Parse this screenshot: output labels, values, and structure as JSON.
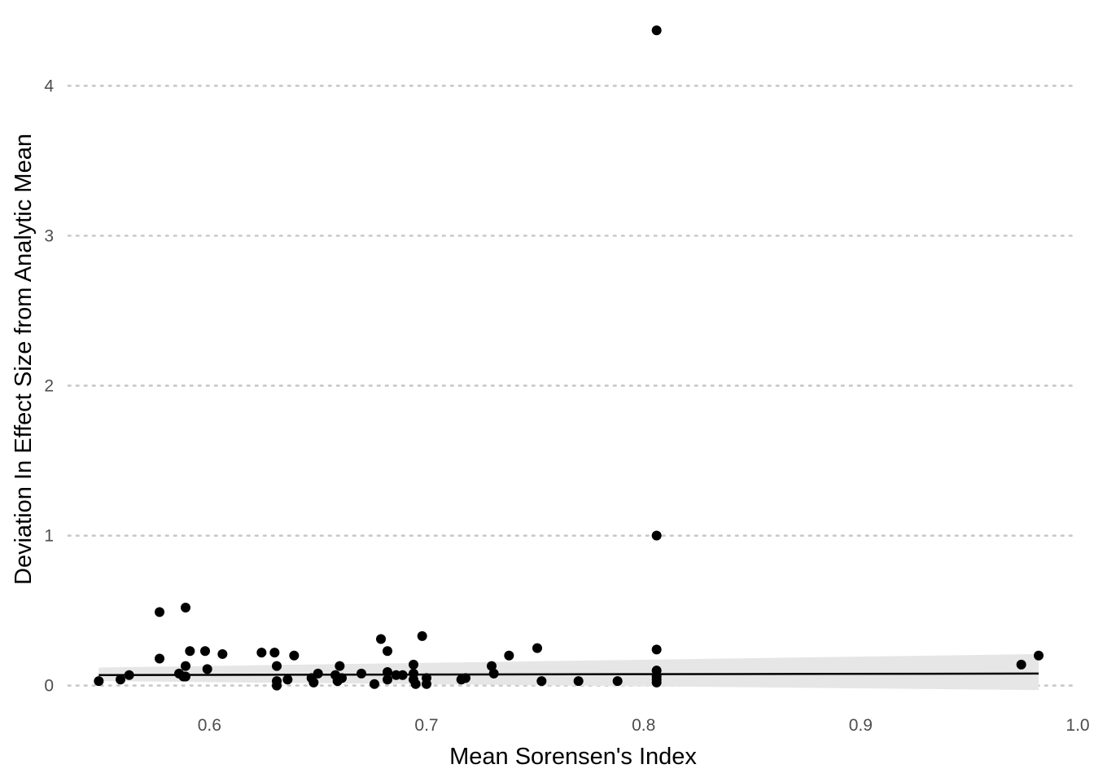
{
  "chart_data": {
    "type": "scatter",
    "title": "",
    "xlabel": "Mean Sorensen's Index",
    "ylabel": "Deviation In Effect Size from Analytic Mean",
    "xlim": [
      0.535,
      1.0
    ],
    "ylim": [
      -0.1,
      4.42
    ],
    "x_ticks": [
      0.6,
      0.7,
      0.8,
      0.9,
      1.0
    ],
    "x_tick_labels": [
      "0.6",
      "0.7",
      "0.8",
      "0.9",
      "1.0"
    ],
    "y_ticks": [
      0,
      1,
      2,
      3,
      4
    ],
    "y_tick_labels": [
      "0",
      "1",
      "2",
      "3",
      "4"
    ],
    "grid": "horizontal dotted major",
    "legend": "none",
    "colors": {
      "points": "#000000",
      "trend_line": "#000000",
      "confidence_band": "#e6e6e6",
      "grid": "#c8c8c8"
    },
    "points": [
      {
        "x": 0.549,
        "y": 0.03
      },
      {
        "x": 0.559,
        "y": 0.04
      },
      {
        "x": 0.563,
        "y": 0.07
      },
      {
        "x": 0.577,
        "y": 0.49
      },
      {
        "x": 0.577,
        "y": 0.18
      },
      {
        "x": 0.586,
        "y": 0.08
      },
      {
        "x": 0.588,
        "y": 0.06
      },
      {
        "x": 0.589,
        "y": 0.13
      },
      {
        "x": 0.589,
        "y": 0.06
      },
      {
        "x": 0.589,
        "y": 0.52
      },
      {
        "x": 0.591,
        "y": 0.23
      },
      {
        "x": 0.598,
        "y": 0.23
      },
      {
        "x": 0.599,
        "y": 0.11
      },
      {
        "x": 0.606,
        "y": 0.21
      },
      {
        "x": 0.624,
        "y": 0.22
      },
      {
        "x": 0.63,
        "y": 0.22
      },
      {
        "x": 0.631,
        "y": 0.13
      },
      {
        "x": 0.631,
        "y": 0.03
      },
      {
        "x": 0.631,
        "y": 0.0
      },
      {
        "x": 0.636,
        "y": 0.04
      },
      {
        "x": 0.639,
        "y": 0.2
      },
      {
        "x": 0.647,
        "y": 0.05
      },
      {
        "x": 0.648,
        "y": 0.02
      },
      {
        "x": 0.65,
        "y": 0.08
      },
      {
        "x": 0.658,
        "y": 0.07
      },
      {
        "x": 0.659,
        "y": 0.03
      },
      {
        "x": 0.66,
        "y": 0.13
      },
      {
        "x": 0.661,
        "y": 0.05
      },
      {
        "x": 0.67,
        "y": 0.08
      },
      {
        "x": 0.676,
        "y": 0.01
      },
      {
        "x": 0.679,
        "y": 0.31
      },
      {
        "x": 0.682,
        "y": 0.04
      },
      {
        "x": 0.682,
        "y": 0.09
      },
      {
        "x": 0.682,
        "y": 0.23
      },
      {
        "x": 0.686,
        "y": 0.07
      },
      {
        "x": 0.689,
        "y": 0.07
      },
      {
        "x": 0.694,
        "y": 0.14
      },
      {
        "x": 0.694,
        "y": 0.08
      },
      {
        "x": 0.694,
        "y": 0.04
      },
      {
        "x": 0.695,
        "y": 0.01
      },
      {
        "x": 0.698,
        "y": 0.33
      },
      {
        "x": 0.7,
        "y": 0.05
      },
      {
        "x": 0.7,
        "y": 0.01
      },
      {
        "x": 0.716,
        "y": 0.04
      },
      {
        "x": 0.718,
        "y": 0.05
      },
      {
        "x": 0.73,
        "y": 0.13
      },
      {
        "x": 0.731,
        "y": 0.08
      },
      {
        "x": 0.738,
        "y": 0.2
      },
      {
        "x": 0.751,
        "y": 0.25
      },
      {
        "x": 0.753,
        "y": 0.03
      },
      {
        "x": 0.77,
        "y": 0.03
      },
      {
        "x": 0.788,
        "y": 0.03
      },
      {
        "x": 0.806,
        "y": 4.37
      },
      {
        "x": 0.806,
        "y": 1.0
      },
      {
        "x": 0.806,
        "y": 0.24
      },
      {
        "x": 0.806,
        "y": 0.1
      },
      {
        "x": 0.806,
        "y": 0.06
      },
      {
        "x": 0.806,
        "y": 0.04
      },
      {
        "x": 0.806,
        "y": 0.02
      },
      {
        "x": 0.974,
        "y": 0.14
      },
      {
        "x": 0.982,
        "y": 0.2
      }
    ],
    "trend": {
      "type": "linear",
      "x": [
        0.549,
        0.982
      ],
      "y": [
        0.07,
        0.08
      ],
      "ci_lower": [
        0.03,
        -0.03
      ],
      "ci_upper": [
        0.12,
        0.21
      ]
    }
  }
}
